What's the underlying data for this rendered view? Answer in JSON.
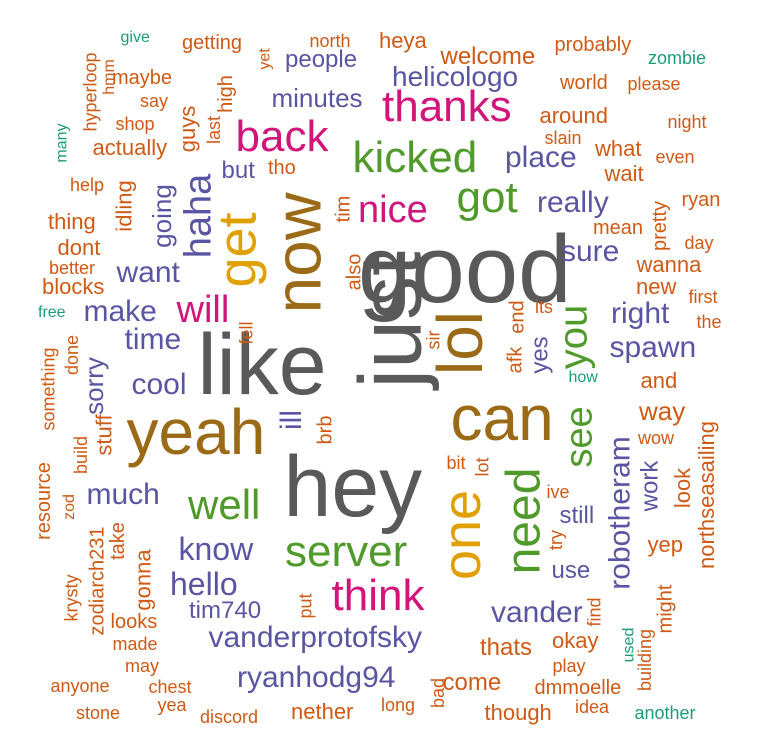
{
  "palette": {
    "gray": "#595959",
    "green": "#4f9a2a",
    "orange": "#cf5a14",
    "purple": "#5a55a2",
    "magenta": "#d1157a",
    "gold": "#e0a000",
    "brown": "#9a6a16",
    "teal": "#1b9e77"
  },
  "words": [
    {
      "text": "just",
      "color": "gray"
    },
    {
      "text": "good",
      "color": "gray"
    },
    {
      "text": "like",
      "color": "gray"
    },
    {
      "text": "hey",
      "color": "gray"
    },
    {
      "text": "now",
      "color": "brown"
    },
    {
      "text": "yeah",
      "color": "brown"
    },
    {
      "text": "can",
      "color": "brown"
    },
    {
      "text": "lol",
      "color": "brown"
    },
    {
      "text": "get",
      "color": "gold"
    },
    {
      "text": "one",
      "color": "gold"
    },
    {
      "text": "back",
      "color": "magenta"
    },
    {
      "text": "thanks",
      "color": "magenta"
    },
    {
      "text": "nice",
      "color": "magenta"
    },
    {
      "text": "think",
      "color": "magenta"
    },
    {
      "text": "will",
      "color": "magenta"
    },
    {
      "text": "kicked",
      "color": "green"
    },
    {
      "text": "got",
      "color": "green"
    },
    {
      "text": "see",
      "color": "green"
    },
    {
      "text": "you",
      "color": "green"
    },
    {
      "text": "need",
      "color": "green"
    },
    {
      "text": "server",
      "color": "green"
    },
    {
      "text": "well",
      "color": "green"
    },
    {
      "text": "haha",
      "color": "purple"
    },
    {
      "text": "helicologo",
      "color": "purple"
    },
    {
      "text": "place",
      "color": "purple"
    },
    {
      "text": "really",
      "color": "purple"
    },
    {
      "text": "sure",
      "color": "purple"
    },
    {
      "text": "want",
      "color": "purple"
    },
    {
      "text": "make",
      "color": "purple"
    },
    {
      "text": "time",
      "color": "purple"
    },
    {
      "text": "cool",
      "color": "purple"
    },
    {
      "text": "much",
      "color": "purple"
    },
    {
      "text": "know",
      "color": "purple"
    },
    {
      "text": "hello",
      "color": "purple"
    },
    {
      "text": "vanderprotofsky",
      "color": "purple"
    },
    {
      "text": "ryanhodg94",
      "color": "purple"
    },
    {
      "text": "vander",
      "color": "purple"
    },
    {
      "text": "spawn",
      "color": "purple"
    },
    {
      "text": "right",
      "color": "purple"
    },
    {
      "text": "robotheram",
      "color": "purple"
    },
    {
      "text": "work",
      "color": "purple"
    },
    {
      "text": "still",
      "color": "purple"
    },
    {
      "text": "use",
      "color": "purple"
    },
    {
      "text": "minutes",
      "color": "purple"
    },
    {
      "text": "people",
      "color": "purple"
    },
    {
      "text": "but",
      "color": "purple"
    },
    {
      "text": "going",
      "color": "purple"
    },
    {
      "text": "ill",
      "color": "purple"
    },
    {
      "text": "tim740",
      "color": "purple"
    },
    {
      "text": "sorry",
      "color": "purple"
    },
    {
      "text": "yes",
      "color": "purple"
    },
    {
      "text": "welcome",
      "color": "orange"
    },
    {
      "text": "heya",
      "color": "orange"
    },
    {
      "text": "getting",
      "color": "orange"
    },
    {
      "text": "probably",
      "color": "orange"
    },
    {
      "text": "north",
      "color": "orange"
    },
    {
      "text": "maybe",
      "color": "orange"
    },
    {
      "text": "world",
      "color": "orange"
    },
    {
      "text": "please",
      "color": "orange"
    },
    {
      "text": "around",
      "color": "orange"
    },
    {
      "text": "night",
      "color": "orange"
    },
    {
      "text": "say",
      "color": "orange"
    },
    {
      "text": "shop",
      "color": "orange"
    },
    {
      "text": "actually",
      "color": "orange"
    },
    {
      "text": "guys",
      "color": "orange"
    },
    {
      "text": "slain",
      "color": "orange"
    },
    {
      "text": "what",
      "color": "orange"
    },
    {
      "text": "even",
      "color": "orange"
    },
    {
      "text": "wait",
      "color": "orange"
    },
    {
      "text": "help",
      "color": "orange"
    },
    {
      "text": "idling",
      "color": "orange"
    },
    {
      "text": "thing",
      "color": "orange"
    },
    {
      "text": "dont",
      "color": "orange"
    },
    {
      "text": "better",
      "color": "orange"
    },
    {
      "text": "blocks",
      "color": "orange"
    },
    {
      "text": "mean",
      "color": "orange"
    },
    {
      "text": "day",
      "color": "orange"
    },
    {
      "text": "wanna",
      "color": "orange"
    },
    {
      "text": "pretty",
      "color": "orange"
    },
    {
      "text": "ryan",
      "color": "orange"
    },
    {
      "text": "new",
      "color": "orange"
    },
    {
      "text": "first",
      "color": "orange"
    },
    {
      "text": "the",
      "color": "orange"
    },
    {
      "text": "also",
      "color": "orange"
    },
    {
      "text": "tim",
      "color": "orange"
    },
    {
      "text": "tho",
      "color": "orange"
    },
    {
      "text": "last",
      "color": "orange"
    },
    {
      "text": "high",
      "color": "orange"
    },
    {
      "text": "yet",
      "color": "orange"
    },
    {
      "text": "hmm",
      "color": "orange"
    },
    {
      "text": "hyperloop",
      "color": "orange"
    },
    {
      "text": "fell",
      "color": "orange"
    },
    {
      "text": "sir",
      "color": "orange"
    },
    {
      "text": "its",
      "color": "orange"
    },
    {
      "text": "afk",
      "color": "orange"
    },
    {
      "text": "end",
      "color": "orange"
    },
    {
      "text": "brb",
      "color": "orange"
    },
    {
      "text": "and",
      "color": "orange"
    },
    {
      "text": "way",
      "color": "orange"
    },
    {
      "text": "wow",
      "color": "orange"
    },
    {
      "text": "something",
      "color": "orange"
    },
    {
      "text": "done",
      "color": "orange"
    },
    {
      "text": "stuff",
      "color": "orange"
    },
    {
      "text": "build",
      "color": "orange"
    },
    {
      "text": "resource",
      "color": "orange"
    },
    {
      "text": "bit",
      "color": "orange"
    },
    {
      "text": "lot",
      "color": "orange"
    },
    {
      "text": "look",
      "color": "orange"
    },
    {
      "text": "northseasailing",
      "color": "orange"
    },
    {
      "text": "ive",
      "color": "orange"
    },
    {
      "text": "try",
      "color": "orange"
    },
    {
      "text": "zod",
      "color": "orange"
    },
    {
      "text": "krysty",
      "color": "orange"
    },
    {
      "text": "zodiarch231",
      "color": "orange"
    },
    {
      "text": "take",
      "color": "orange"
    },
    {
      "text": "gonna",
      "color": "orange"
    },
    {
      "text": "yep",
      "color": "orange"
    },
    {
      "text": "might",
      "color": "orange"
    },
    {
      "text": "find",
      "color": "orange"
    },
    {
      "text": "okay",
      "color": "orange"
    },
    {
      "text": "put",
      "color": "orange"
    },
    {
      "text": "looks",
      "color": "orange"
    },
    {
      "text": "made",
      "color": "orange"
    },
    {
      "text": "thats",
      "color": "orange"
    },
    {
      "text": "building",
      "color": "orange"
    },
    {
      "text": "may",
      "color": "orange"
    },
    {
      "text": "play",
      "color": "orange"
    },
    {
      "text": "come",
      "color": "orange"
    },
    {
      "text": "dmmoelle",
      "color": "orange"
    },
    {
      "text": "anyone",
      "color": "orange"
    },
    {
      "text": "chest",
      "color": "orange"
    },
    {
      "text": "yea",
      "color": "orange"
    },
    {
      "text": "bad",
      "color": "orange"
    },
    {
      "text": "long",
      "color": "orange"
    },
    {
      "text": "idea",
      "color": "orange"
    },
    {
      "text": "stone",
      "color": "orange"
    },
    {
      "text": "discord",
      "color": "orange"
    },
    {
      "text": "nether",
      "color": "orange"
    },
    {
      "text": "though",
      "color": "orange"
    },
    {
      "text": "give",
      "color": "teal"
    },
    {
      "text": "zombie",
      "color": "teal"
    },
    {
      "text": "many",
      "color": "teal"
    },
    {
      "text": "free",
      "color": "teal"
    },
    {
      "text": "how",
      "color": "teal"
    },
    {
      "text": "used",
      "color": "teal"
    },
    {
      "text": "another",
      "color": "teal"
    }
  ]
}
